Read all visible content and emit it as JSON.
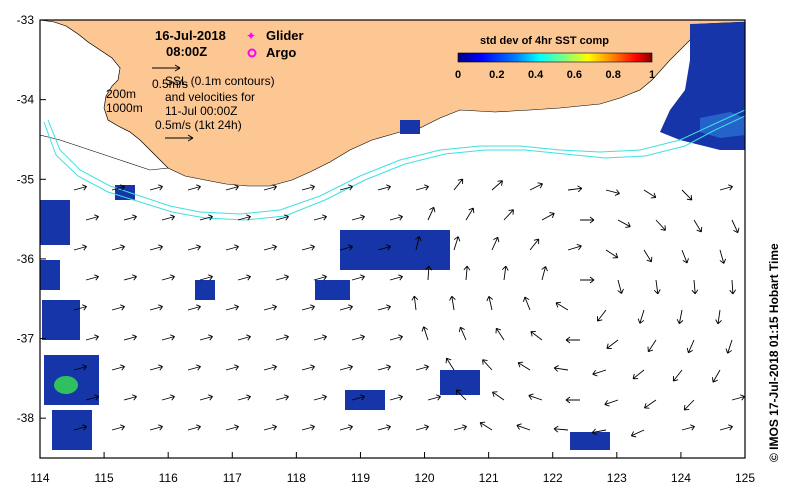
{
  "header": {
    "date": "16-Jul-2018",
    "time": "08:00Z"
  },
  "legend": {
    "glider_label": "Glider",
    "argo_label": "Argo",
    "glider_color": "#ff00ff",
    "argo_color": "#ff00ff"
  },
  "annotation": {
    "scale_top": "0.5m/s",
    "ssl_line1": "SSL (0.1m contours)",
    "ssl_line2": "and velocities for",
    "ssl_line3": "11-Jul 00:00Z",
    "scale_bottom": "0.5m/s (1kt 24h)",
    "depth_200": "200m",
    "depth_1000": "1000m"
  },
  "colorbar": {
    "title": "std dev of 4hr SST comp",
    "ticks": [
      "0",
      "0.2",
      "0.4",
      "0.6",
      "0.8",
      "1"
    ],
    "colors": [
      "#000080",
      "#0000ff",
      "#0080ff",
      "#00ffff",
      "#80ff80",
      "#ffff00",
      "#ff8000",
      "#ff0000",
      "#800000"
    ]
  },
  "footer": {
    "timestamp": "©  IMOS 17-Jul-2018 01:15 Hobart Time"
  },
  "axes": {
    "x_ticks": [
      "114",
      "115",
      "116",
      "117",
      "118",
      "119",
      "120",
      "121",
      "122",
      "123",
      "124",
      "125"
    ],
    "y_ticks": [
      "-33",
      "-34",
      "-35",
      "-36",
      "-37",
      "-38"
    ],
    "x_range": [
      114,
      125
    ],
    "y_range": [
      -38.5,
      -33
    ]
  },
  "colors": {
    "land": "#fdc794",
    "contour": "#40e0e0",
    "sst_patch": "#1030a0"
  }
}
